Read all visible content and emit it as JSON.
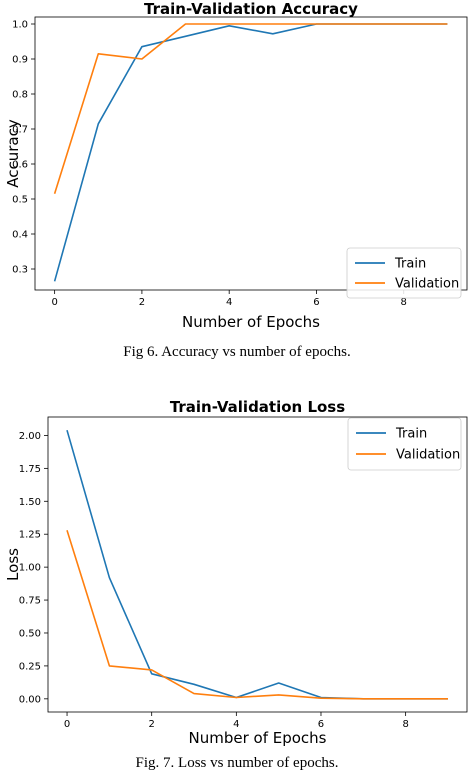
{
  "colors": {
    "train": "#1f77b4",
    "validation": "#ff7f0e"
  },
  "chart_data": [
    {
      "type": "line",
      "title": "Train-Validation Accuracy",
      "xlabel": "Number of Epochs",
      "ylabel": "Accuracy",
      "caption": "Fig 6. Accuracy vs number of epochs.",
      "x": [
        0,
        1,
        2,
        3,
        4,
        5,
        6,
        7,
        8,
        9
      ],
      "xlim": [
        -0.45,
        9.45
      ],
      "ylim": [
        0.24,
        1.02
      ],
      "xticks": [
        0,
        2,
        4,
        6,
        8
      ],
      "yticks": [
        0.3,
        0.4,
        0.5,
        0.6,
        0.7,
        0.8,
        0.9,
        1.0
      ],
      "ytick_labels": [
        "0.3",
        "0.4",
        "0.5",
        "0.6",
        "0.7",
        "0.8",
        "0.9",
        "1.0"
      ],
      "legend": "bottom-right",
      "grid": false,
      "series": [
        {
          "name": "Train",
          "values": [
            0.265,
            0.715,
            0.935,
            0.965,
            0.995,
            0.972,
            1.0,
            1.0,
            1.0,
            1.0
          ]
        },
        {
          "name": "Validation",
          "values": [
            0.515,
            0.915,
            0.9,
            1.0,
            1.0,
            1.0,
            1.0,
            1.0,
            1.0,
            1.0
          ]
        }
      ]
    },
    {
      "type": "line",
      "title": "Train-Validation Loss",
      "xlabel": "Number of Epochs",
      "ylabel": "Loss",
      "caption": "Fig. 7. Loss vs number of epochs.",
      "x": [
        0,
        1,
        2,
        3,
        4,
        5,
        6,
        7,
        8,
        9
      ],
      "xlim": [
        -0.45,
        9.45
      ],
      "ylim": [
        -0.1,
        2.14
      ],
      "xticks": [
        0,
        2,
        4,
        6,
        8
      ],
      "yticks": [
        0,
        0.25,
        0.5,
        0.75,
        1.0,
        1.25,
        1.5,
        1.75,
        2.0
      ],
      "ytick_labels": [
        "0.00",
        "0.25",
        "0.50",
        "0.75",
        "1.00",
        "1.25",
        "1.50",
        "1.75",
        "2.00"
      ],
      "legend": "top-right",
      "grid": false,
      "series": [
        {
          "name": "Train",
          "values": [
            2.04,
            0.92,
            0.19,
            0.11,
            0.01,
            0.12,
            0.01,
            0.0,
            0.0,
            0.0
          ]
        },
        {
          "name": "Validation",
          "values": [
            1.28,
            0.25,
            0.22,
            0.04,
            0.01,
            0.03,
            0.005,
            0.0,
            0.0,
            0.0
          ]
        }
      ]
    }
  ]
}
